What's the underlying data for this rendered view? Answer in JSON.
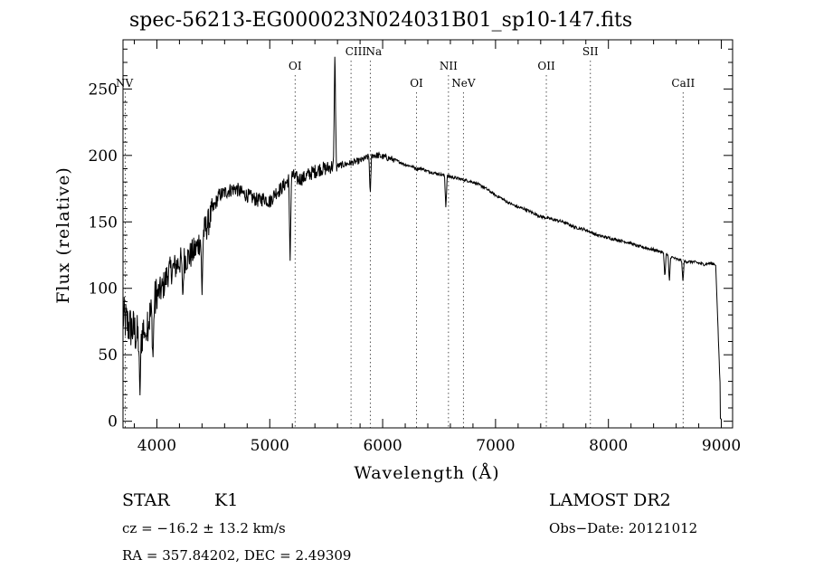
{
  "chart_data": {
    "type": "line",
    "title": "spec-56213-EG000023N024031B01_sp10-147.fits",
    "xlabel": "Wavelength (Å)",
    "ylabel": "Flux (relative)",
    "xlim": [
      3700,
      9100
    ],
    "ylim": [
      -5,
      287
    ],
    "xticks": [
      4000,
      5000,
      6000,
      7000,
      8000,
      9000
    ],
    "xtick_labels": [
      "4000",
      "5000",
      "6000",
      "7000",
      "8000",
      "9000"
    ],
    "yticks": [
      0,
      50,
      100,
      150,
      200,
      250
    ],
    "ytick_labels": [
      "0",
      "50",
      "100",
      "150",
      "200",
      "250"
    ],
    "grid": false,
    "line_color": "#000000",
    "series": [
      {
        "x": [
          3700,
          3750,
          3800,
          3850,
          3900,
          3950,
          4000,
          4050,
          4100,
          4150,
          4200,
          4250,
          4300,
          4350,
          4400,
          4450,
          4500,
          4550,
          4600,
          4650,
          4700,
          4750,
          4800,
          4850,
          4900,
          4950,
          5000,
          5050,
          5100,
          5150,
          5200,
          5250,
          5300,
          5350,
          5400,
          5450,
          5500,
          5550,
          5600,
          5650,
          5700,
          5750,
          5800,
          5850,
          5900,
          5950,
          6000,
          6050,
          6100,
          6150,
          6200,
          6250,
          6300,
          6350,
          6400,
          6450,
          6500,
          6550,
          6600,
          6650,
          6700,
          6750,
          6800,
          6850,
          6900,
          6950,
          7000,
          7050,
          7100,
          7150,
          7200,
          7250,
          7300,
          7350,
          7400,
          7450,
          7500,
          7550,
          7600,
          7650,
          7700,
          7750,
          7800,
          7850,
          7900,
          7950,
          8000,
          8050,
          8100,
          8150,
          8200,
          8250,
          8300,
          8350,
          8400,
          8450,
          8500,
          8550,
          8600,
          8650,
          8700,
          8750,
          8800,
          8850,
          8900,
          8950,
          9000
        ],
        "y": [
          78,
          72,
          68,
          60,
          75,
          80,
          95,
          100,
          112,
          115,
          120,
          122,
          125,
          130,
          140,
          148,
          160,
          170,
          172,
          174,
          175,
          172,
          170,
          168,
          166,
          168,
          165,
          172,
          175,
          180,
          185,
          182,
          183,
          186,
          188,
          190,
          190,
          192,
          192,
          193,
          194,
          195,
          196,
          198,
          200,
          200,
          199,
          198,
          197,
          195,
          193,
          192,
          190,
          190,
          188,
          187,
          186,
          185,
          184,
          183,
          182,
          181,
          180,
          178,
          176,
          173,
          170,
          168,
          165,
          163,
          161,
          160,
          158,
          156,
          154,
          153,
          152,
          151,
          150,
          148,
          146,
          145,
          144,
          142,
          140,
          139,
          138,
          137,
          136,
          135,
          134,
          132,
          131,
          130,
          129,
          128,
          126,
          124,
          122,
          121,
          120,
          120,
          119,
          118,
          119,
          118,
          2
        ]
      }
    ],
    "features": [
      {
        "x": 3900,
        "y": 62
      },
      {
        "x": 3850,
        "y": 18
      },
      {
        "x": 3965,
        "y": 45
      },
      {
        "x": 4230,
        "y": 92
      },
      {
        "x": 4400,
        "y": 95
      },
      {
        "x": 5180,
        "y": 118
      },
      {
        "x": 5890,
        "y": 170
      },
      {
        "x": 6560,
        "y": 160
      },
      {
        "x": 8500,
        "y": 108
      },
      {
        "x": 8540,
        "y": 105
      },
      {
        "x": 8660,
        "y": 105
      },
      {
        "x": 5577,
        "y": 282
      }
    ],
    "line_markers": [
      {
        "name": "NV",
        "wavelength": 3720,
        "row": 1
      },
      {
        "name": "OI",
        "wavelength": 5225,
        "row": 0
      },
      {
        "name": "CIII",
        "wavelength": 5720,
        "row": 2
      },
      {
        "name": "Na",
        "wavelength": 5891,
        "row": 2
      },
      {
        "name": "OI",
        "wavelength": 6300,
        "row": 1
      },
      {
        "name": "NII",
        "wavelength": 6583,
        "row": 0
      },
      {
        "name": "NeV",
        "wavelength": 6716,
        "row": 1
      },
      {
        "name": "OII",
        "wavelength": 7450,
        "row": 0
      },
      {
        "name": "SII",
        "wavelength": 7840,
        "row": 2
      },
      {
        "name": "CaII",
        "wavelength": 8662,
        "row": 1
      }
    ]
  },
  "info": {
    "object_class": "STAR",
    "subclass": "K1",
    "survey": "LAMOST DR2",
    "cz": "cz = −16.2 ± 13.2 km/s",
    "obs_date": "Obs−Date: 20121012",
    "radec": "RA = 357.84202, DEC =   2.49309"
  }
}
